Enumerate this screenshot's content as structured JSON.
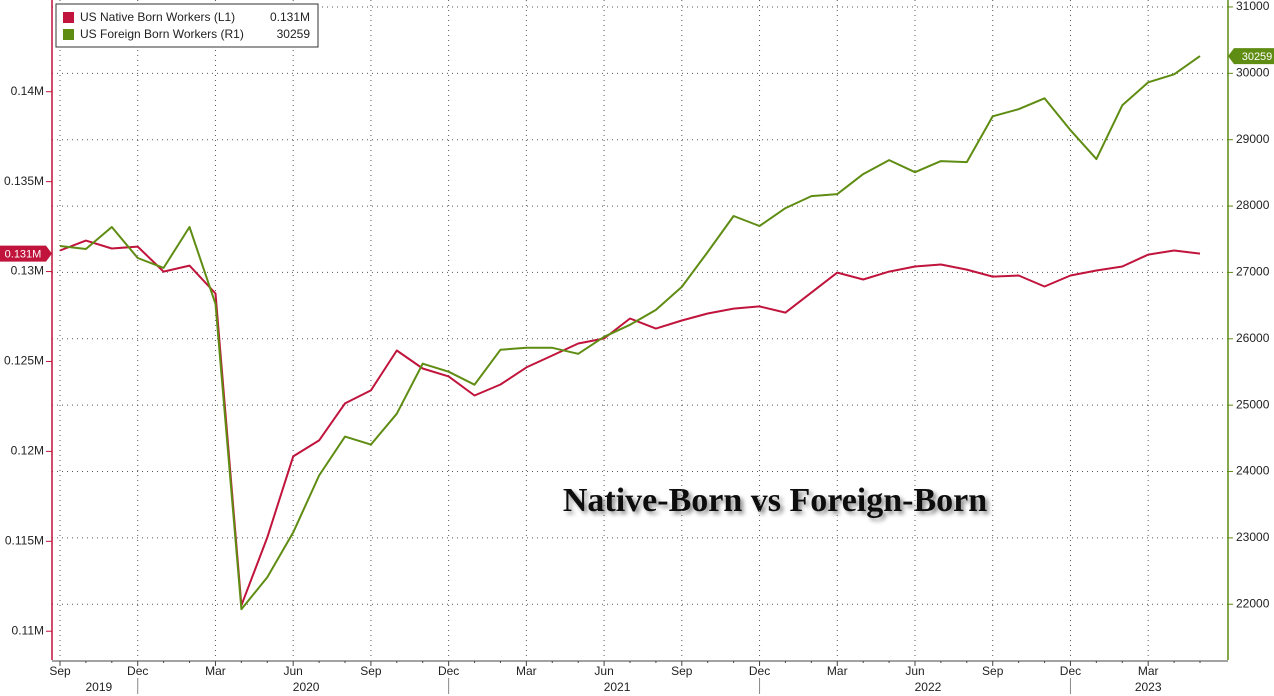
{
  "chart_data": {
    "type": "line",
    "annotation": "Native-Born vs Foreign-Born",
    "categories": [
      "Sep",
      null,
      null,
      "Dec",
      null,
      null,
      "Mar",
      null,
      null,
      "Jun",
      null,
      null,
      "Sep",
      null,
      null,
      "Dec",
      null,
      null,
      "Mar",
      null,
      null,
      "Jun",
      null,
      null,
      "Sep",
      null,
      null,
      "Dec",
      null,
      null,
      "Mar",
      null,
      null,
      "Jun",
      null,
      null,
      "Sep",
      null,
      null,
      "Dec",
      null,
      null,
      "Mar",
      null,
      null
    ],
    "years": [
      "2019",
      "2020",
      "2021",
      "2022",
      "2023"
    ],
    "series": [
      {
        "name": "US Native Born Workers (L1)",
        "last_label": "0.131M",
        "color": "#c0143c",
        "axis": "y",
        "values": [
          0.13117,
          0.13172,
          0.13128,
          0.13139,
          0.13,
          0.13033,
          0.12878,
          0.11144,
          0.11522,
          0.11972,
          0.12061,
          0.12267,
          0.12339,
          0.12561,
          0.12461,
          0.12417,
          0.12311,
          0.12372,
          0.12467,
          0.12533,
          0.126,
          0.12628,
          0.12739,
          0.12683,
          0.12728,
          0.12767,
          0.12794,
          0.12806,
          0.12772,
          0.12883,
          0.12994,
          0.12956,
          0.13,
          0.13028,
          0.13039,
          0.13011,
          0.12972,
          0.12978,
          0.12917,
          0.12978,
          0.13006,
          0.13028,
          0.13094,
          0.13117,
          0.131
        ]
      },
      {
        "name": "US Foreign Born Workers (R1)",
        "last_label": "30259",
        "color": "#5f8c12",
        "axis": "y2",
        "values": [
          27398,
          27353,
          27684,
          27218,
          27068,
          27684,
          26526,
          21925,
          22406,
          23083,
          23940,
          24526,
          24406,
          24872,
          25624,
          25504,
          25308,
          25835,
          25865,
          25865,
          25774,
          26030,
          26211,
          26436,
          26782,
          27308,
          27850,
          27699,
          27970,
          28150,
          28180,
          28481,
          28692,
          28511,
          28677,
          28662,
          29353,
          29459,
          29624,
          29143,
          28707,
          29519,
          29865,
          29985,
          30259
        ]
      }
    ],
    "ylim": [
      0.1084,
      0.1451
    ],
    "yticks": [
      {
        "value": 0.11,
        "label": "0.11M"
      },
      {
        "value": 0.115,
        "label": "0.115M"
      },
      {
        "value": 0.12,
        "label": "0.12M"
      },
      {
        "value": 0.125,
        "label": "0.125M"
      },
      {
        "value": 0.13,
        "label": "0.13M"
      },
      {
        "value": 0.135,
        "label": "0.135M"
      },
      {
        "value": 0.14,
        "label": "0.14M"
      }
    ],
    "y2lim": [
      21160,
      31105
    ],
    "y2ticks": [
      22000,
      23000,
      24000,
      25000,
      26000,
      27000,
      28000,
      29000,
      30000,
      31000
    ],
    "grid": true
  }
}
